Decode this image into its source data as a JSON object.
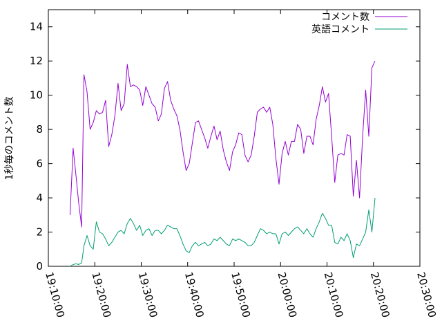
{
  "chart_data": {
    "type": "line",
    "title": "",
    "xlabel": "",
    "ylabel": "1秒毎のコメント数",
    "xlim": [
      "19:10:00",
      "20:30:00"
    ],
    "ylim": [
      0,
      15
    ],
    "x_ticks": [
      "19:10:00",
      "19:20:00",
      "19:30:00",
      "19:40:00",
      "19:50:00",
      "20:00:00",
      "20:10:00",
      "20:20:00",
      "20:30:00"
    ],
    "y_ticks": [
      0,
      2,
      4,
      6,
      8,
      10,
      12,
      14
    ],
    "grid": false,
    "legend_position": "top-right",
    "series": [
      {
        "name": "コメント数",
        "color": "#9400d3",
        "points": [
          [
            "19:14:40",
            3.0
          ],
          [
            "19:15:20",
            6.9
          ],
          [
            "19:16:00",
            5.2
          ],
          [
            "19:16:30",
            3.8
          ],
          [
            "19:17:10",
            2.3
          ],
          [
            "19:17:40",
            11.2
          ],
          [
            "19:18:20",
            10.2
          ],
          [
            "19:19:00",
            8.0
          ],
          [
            "19:19:40",
            8.4
          ],
          [
            "19:20:20",
            9.1
          ],
          [
            "19:21:00",
            8.9
          ],
          [
            "19:21:40",
            9.0
          ],
          [
            "19:22:20",
            9.7
          ],
          [
            "19:23:00",
            7.0
          ],
          [
            "19:23:40",
            7.7
          ],
          [
            "19:24:20",
            8.8
          ],
          [
            "19:25:00",
            10.7
          ],
          [
            "19:25:40",
            9.1
          ],
          [
            "19:26:20",
            9.5
          ],
          [
            "19:27:00",
            11.8
          ],
          [
            "19:27:40",
            10.5
          ],
          [
            "19:28:20",
            10.6
          ],
          [
            "19:29:00",
            10.5
          ],
          [
            "19:29:40",
            10.3
          ],
          [
            "19:30:20",
            9.4
          ],
          [
            "19:31:00",
            10.5
          ],
          [
            "19:31:40",
            10.0
          ],
          [
            "19:32:20",
            9.5
          ],
          [
            "19:33:00",
            9.3
          ],
          [
            "19:33:40",
            8.5
          ],
          [
            "19:34:20",
            8.9
          ],
          [
            "19:35:00",
            10.4
          ],
          [
            "19:35:40",
            10.8
          ],
          [
            "19:36:20",
            9.7
          ],
          [
            "19:37:00",
            9.2
          ],
          [
            "19:37:40",
            8.8
          ],
          [
            "19:38:20",
            8.0
          ],
          [
            "19:39:00",
            6.7
          ],
          [
            "19:39:40",
            5.6
          ],
          [
            "19:40:20",
            6.0
          ],
          [
            "19:41:00",
            7.2
          ],
          [
            "19:41:40",
            8.4
          ],
          [
            "19:42:20",
            8.5
          ],
          [
            "19:43:00",
            8.0
          ],
          [
            "19:43:40",
            7.5
          ],
          [
            "19:44:20",
            6.9
          ],
          [
            "19:45:00",
            7.6
          ],
          [
            "19:45:40",
            8.2
          ],
          [
            "19:46:20",
            7.4
          ],
          [
            "19:47:00",
            7.9
          ],
          [
            "19:47:40",
            6.8
          ],
          [
            "19:48:20",
            6.1
          ],
          [
            "19:49:00",
            5.6
          ],
          [
            "19:49:40",
            6.7
          ],
          [
            "19:50:20",
            7.1
          ],
          [
            "19:51:00",
            7.8
          ],
          [
            "19:51:40",
            7.7
          ],
          [
            "19:52:20",
            6.5
          ],
          [
            "19:53:00",
            6.1
          ],
          [
            "19:53:40",
            6.5
          ],
          [
            "19:54:20",
            7.6
          ],
          [
            "19:55:00",
            9.0
          ],
          [
            "19:55:40",
            9.2
          ],
          [
            "19:56:20",
            9.3
          ],
          [
            "19:57:00",
            9.0
          ],
          [
            "19:57:40",
            9.3
          ],
          [
            "19:58:20",
            8.3
          ],
          [
            "19:59:00",
            6.3
          ],
          [
            "19:59:40",
            4.8
          ],
          [
            "20:00:20",
            6.6
          ],
          [
            "20:01:00",
            7.3
          ],
          [
            "20:01:40",
            6.5
          ],
          [
            "20:02:20",
            7.3
          ],
          [
            "20:03:00",
            7.3
          ],
          [
            "20:03:40",
            8.3
          ],
          [
            "20:04:20",
            8.0
          ],
          [
            "20:05:00",
            6.6
          ],
          [
            "20:05:40",
            7.6
          ],
          [
            "20:06:20",
            7.6
          ],
          [
            "20:07:00",
            7.1
          ],
          [
            "20:07:40",
            8.6
          ],
          [
            "20:08:20",
            9.4
          ],
          [
            "20:09:00",
            10.5
          ],
          [
            "20:09:40",
            9.6
          ],
          [
            "20:10:20",
            10.1
          ],
          [
            "20:11:00",
            7.6
          ],
          [
            "20:11:40",
            4.9
          ],
          [
            "20:12:20",
            6.5
          ],
          [
            "20:13:00",
            6.6
          ],
          [
            "20:13:40",
            6.5
          ],
          [
            "20:14:20",
            7.7
          ],
          [
            "20:15:00",
            7.6
          ],
          [
            "20:15:40",
            4.1
          ],
          [
            "20:16:20",
            6.2
          ],
          [
            "20:17:00",
            4.0
          ],
          [
            "20:17:40",
            7.6
          ],
          [
            "20:18:20",
            10.3
          ],
          [
            "20:19:00",
            7.6
          ],
          [
            "20:19:40",
            11.6
          ],
          [
            "20:20:20",
            12.0
          ]
        ]
      },
      {
        "name": "英語コメント",
        "color": "#009e73",
        "points": [
          [
            "19:14:40",
            0.0
          ],
          [
            "19:15:20",
            0.1
          ],
          [
            "19:16:00",
            0.15
          ],
          [
            "19:16:30",
            0.1
          ],
          [
            "19:17:10",
            0.2
          ],
          [
            "19:17:40",
            1.2
          ],
          [
            "19:18:20",
            1.8
          ],
          [
            "19:19:00",
            1.2
          ],
          [
            "19:19:40",
            1.0
          ],
          [
            "19:20:20",
            2.6
          ],
          [
            "19:21:00",
            2.0
          ],
          [
            "19:21:40",
            1.9
          ],
          [
            "19:22:20",
            1.6
          ],
          [
            "19:23:00",
            1.2
          ],
          [
            "19:23:40",
            1.4
          ],
          [
            "19:24:20",
            1.7
          ],
          [
            "19:25:00",
            2.0
          ],
          [
            "19:25:40",
            2.1
          ],
          [
            "19:26:20",
            1.9
          ],
          [
            "19:27:00",
            2.5
          ],
          [
            "19:27:40",
            2.8
          ],
          [
            "19:28:20",
            2.5
          ],
          [
            "19:29:00",
            2.1
          ],
          [
            "19:29:40",
            2.4
          ],
          [
            "19:30:20",
            1.8
          ],
          [
            "19:31:00",
            2.1
          ],
          [
            "19:31:40",
            2.2
          ],
          [
            "19:32:20",
            1.8
          ],
          [
            "19:33:00",
            2.1
          ],
          [
            "19:33:40",
            2.1
          ],
          [
            "19:34:20",
            1.9
          ],
          [
            "19:35:00",
            2.1
          ],
          [
            "19:35:40",
            2.4
          ],
          [
            "19:36:20",
            2.3
          ],
          [
            "19:37:00",
            2.2
          ],
          [
            "19:37:40",
            2.2
          ],
          [
            "19:38:20",
            1.8
          ],
          [
            "19:39:00",
            1.3
          ],
          [
            "19:39:40",
            0.9
          ],
          [
            "19:40:20",
            0.8
          ],
          [
            "19:41:00",
            1.2
          ],
          [
            "19:41:40",
            1.4
          ],
          [
            "19:42:20",
            1.2
          ],
          [
            "19:43:00",
            1.3
          ],
          [
            "19:43:40",
            1.4
          ],
          [
            "19:44:20",
            1.2
          ],
          [
            "19:45:00",
            1.3
          ],
          [
            "19:45:40",
            1.6
          ],
          [
            "19:46:20",
            1.5
          ],
          [
            "19:47:00",
            1.7
          ],
          [
            "19:47:40",
            1.5
          ],
          [
            "19:48:20",
            1.3
          ],
          [
            "19:49:00",
            1.2
          ],
          [
            "19:49:40",
            1.6
          ],
          [
            "19:50:20",
            1.5
          ],
          [
            "19:51:00",
            1.6
          ],
          [
            "19:51:40",
            1.5
          ],
          [
            "19:52:20",
            1.4
          ],
          [
            "19:53:00",
            1.2
          ],
          [
            "19:53:40",
            1.2
          ],
          [
            "19:54:20",
            1.4
          ],
          [
            "19:55:00",
            1.8
          ],
          [
            "19:55:40",
            2.2
          ],
          [
            "19:56:20",
            2.1
          ],
          [
            "19:57:00",
            1.9
          ],
          [
            "19:57:40",
            2.0
          ],
          [
            "19:58:20",
            1.9
          ],
          [
            "19:59:00",
            1.9
          ],
          [
            "19:59:40",
            1.3
          ],
          [
            "20:00:20",
            1.9
          ],
          [
            "20:01:00",
            2.0
          ],
          [
            "20:01:40",
            1.8
          ],
          [
            "20:02:20",
            2.0
          ],
          [
            "20:03:00",
            2.2
          ],
          [
            "20:03:40",
            2.3
          ],
          [
            "20:04:20",
            2.1
          ],
          [
            "20:05:00",
            1.9
          ],
          [
            "20:05:40",
            2.2
          ],
          [
            "20:06:20",
            1.9
          ],
          [
            "20:07:00",
            1.7
          ],
          [
            "20:07:40",
            2.2
          ],
          [
            "20:08:20",
            2.6
          ],
          [
            "20:09:00",
            3.1
          ],
          [
            "20:09:40",
            2.8
          ],
          [
            "20:10:20",
            2.4
          ],
          [
            "20:11:00",
            2.4
          ],
          [
            "20:11:40",
            1.4
          ],
          [
            "20:12:20",
            1.3
          ],
          [
            "20:13:00",
            1.7
          ],
          [
            "20:13:40",
            1.5
          ],
          [
            "20:14:20",
            1.9
          ],
          [
            "20:15:00",
            1.5
          ],
          [
            "20:15:40",
            0.5
          ],
          [
            "20:16:20",
            1.3
          ],
          [
            "20:17:00",
            1.2
          ],
          [
            "20:17:40",
            1.6
          ],
          [
            "20:18:20",
            2.0
          ],
          [
            "20:19:00",
            3.3
          ],
          [
            "20:19:40",
            2.0
          ],
          [
            "20:20:20",
            4.0
          ]
        ]
      }
    ]
  }
}
